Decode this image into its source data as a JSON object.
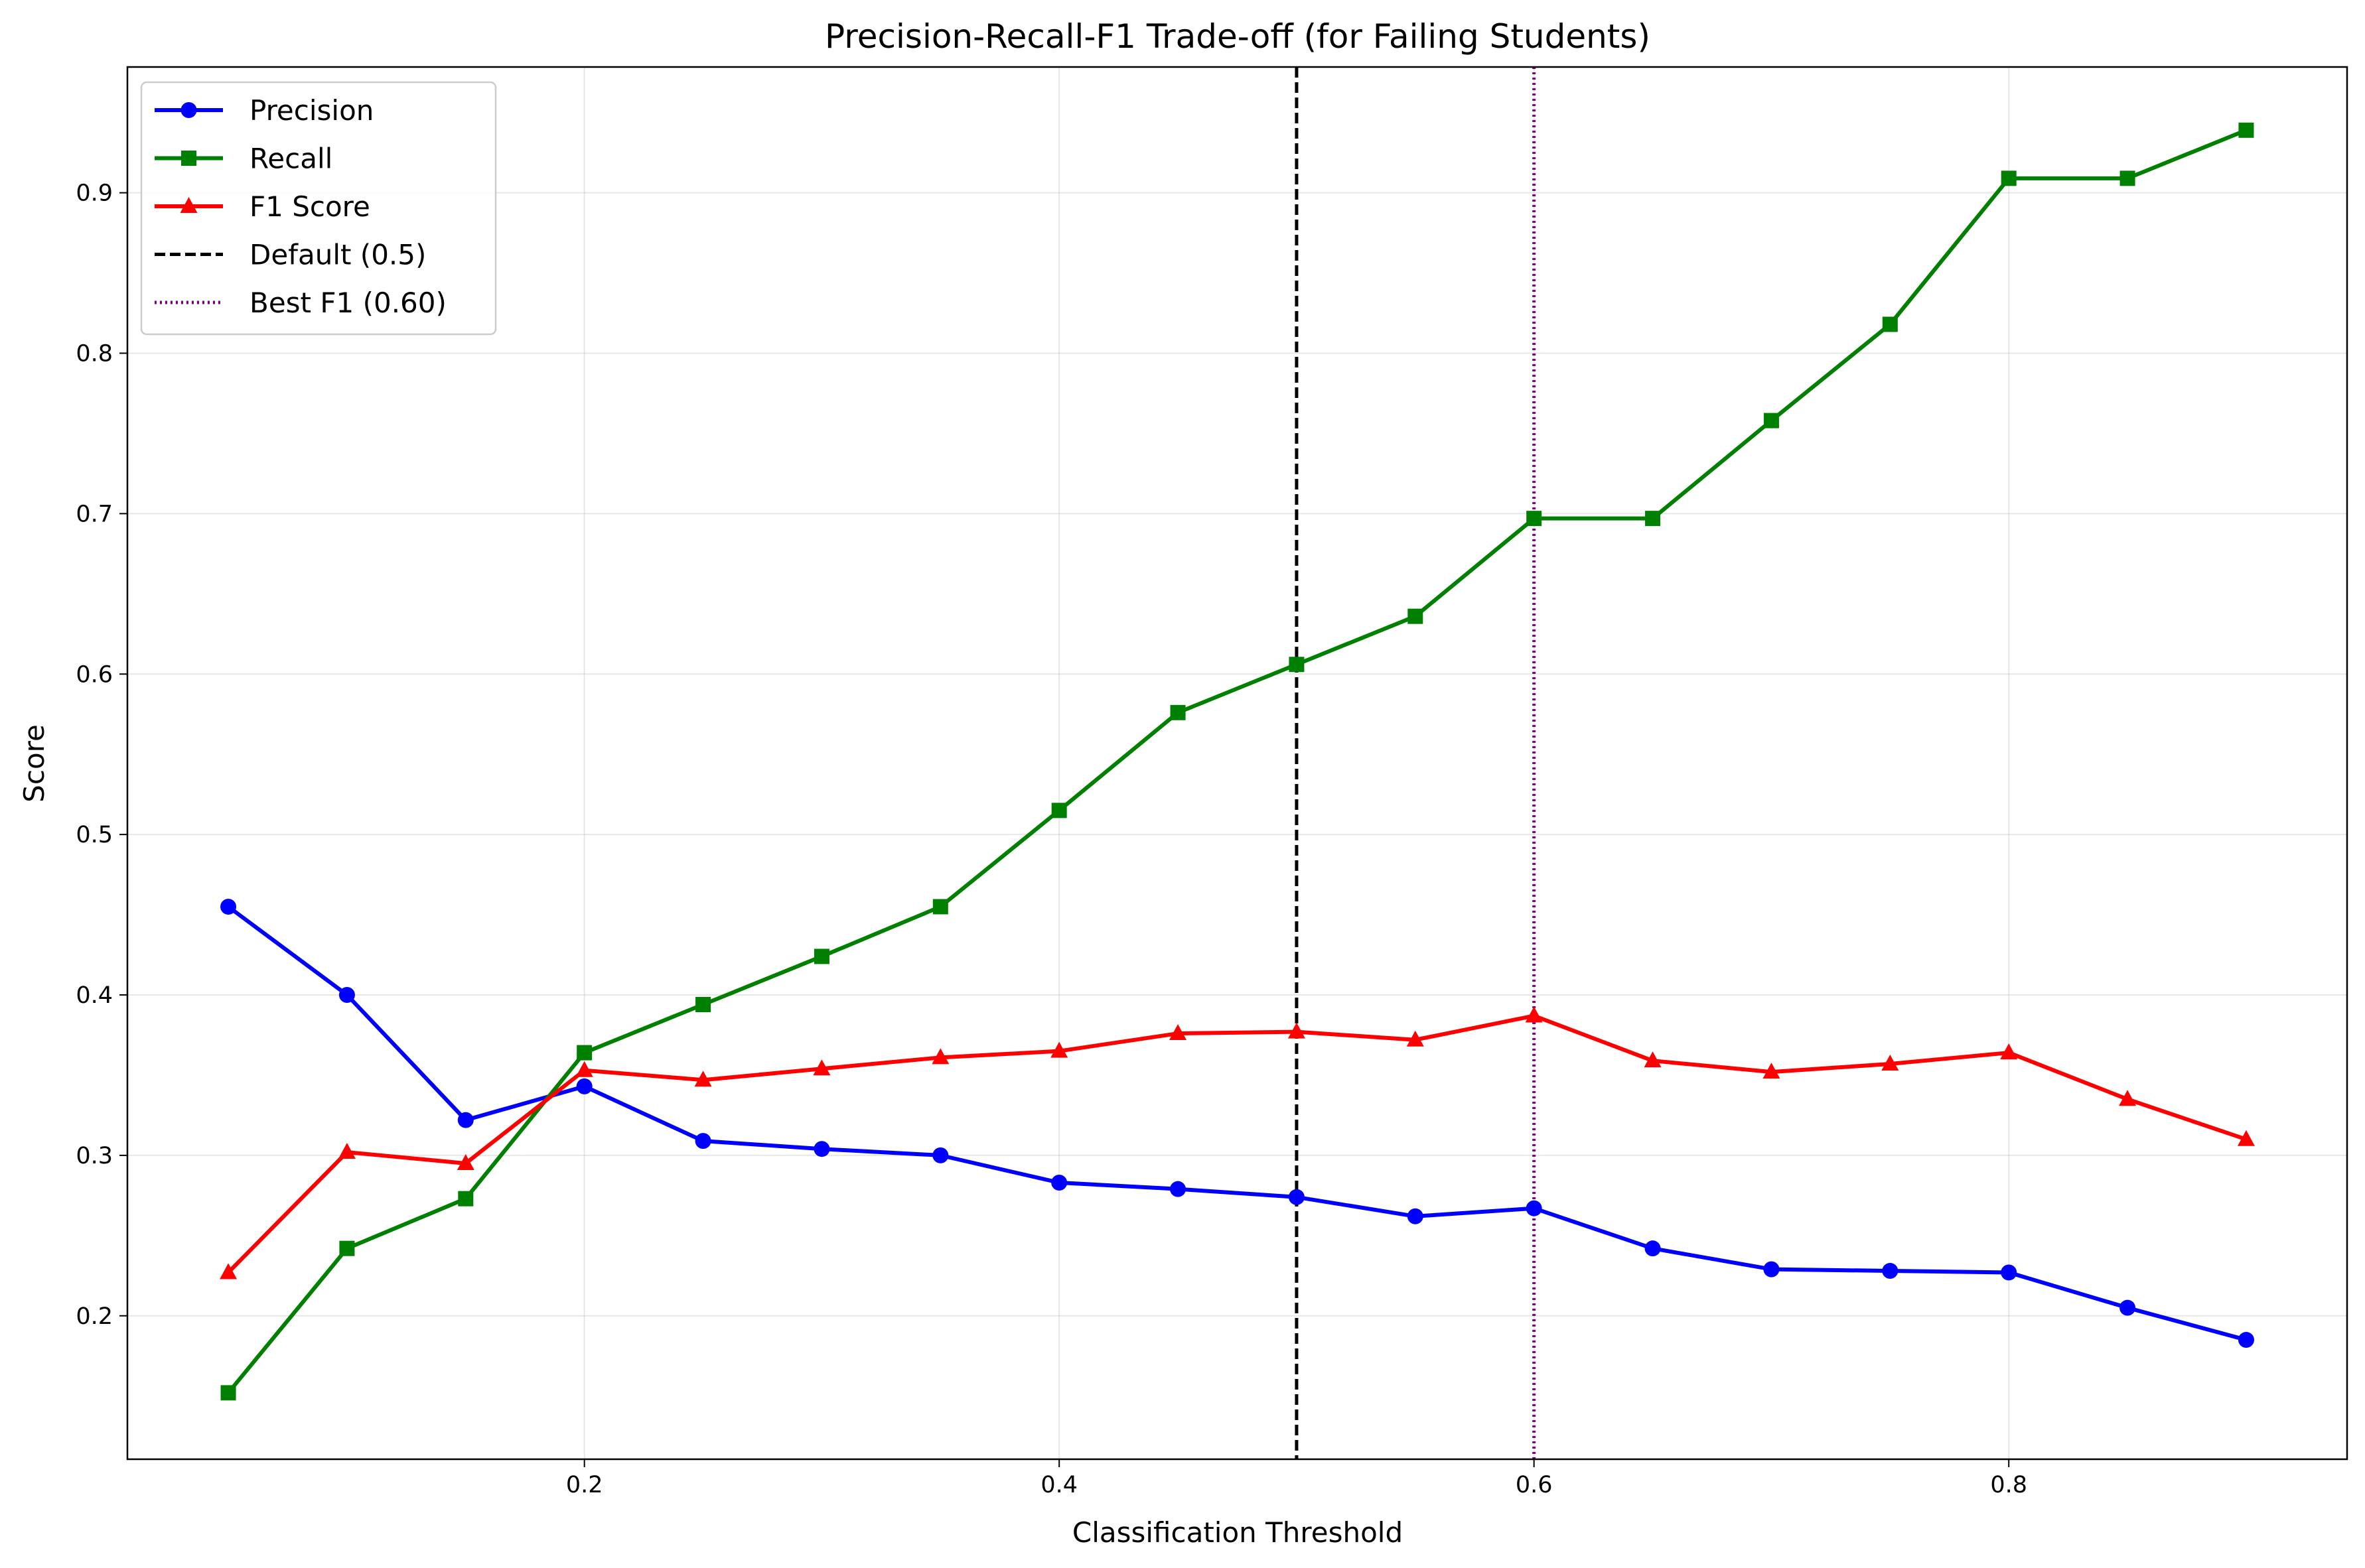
{
  "chart_data": {
    "type": "line",
    "title": "Precision-Recall-F1 Trade-off (for Failing Students)",
    "xlabel": "Classification Threshold",
    "ylabel": "Score",
    "xlim": [
      0.0075,
      0.9425
    ],
    "ylim": [
      0.1106,
      0.9784
    ],
    "xticks": [
      0.2,
      0.4,
      0.6,
      0.8
    ],
    "xtick_labels": [
      "0.2",
      "0.4",
      "0.6",
      "0.8"
    ],
    "yticks": [
      0.2,
      0.3,
      0.4,
      0.5,
      0.6,
      0.7,
      0.8,
      0.9
    ],
    "ytick_labels": [
      "0.2",
      "0.3",
      "0.4",
      "0.5",
      "0.6",
      "0.7",
      "0.8",
      "0.9"
    ],
    "grid": true,
    "legend_position": "top-left",
    "x": [
      0.05,
      0.1,
      0.15,
      0.2,
      0.25,
      0.3,
      0.35,
      0.4,
      0.45,
      0.5,
      0.55,
      0.6,
      0.65,
      0.7,
      0.75,
      0.8,
      0.85,
      0.9
    ],
    "series": [
      {
        "name": "Precision",
        "color": "#0000ff",
        "marker": "circle",
        "values": [
          0.455,
          0.4,
          0.322,
          0.343,
          0.309,
          0.304,
          0.3,
          0.283,
          0.279,
          0.274,
          0.262,
          0.267,
          0.242,
          0.229,
          0.228,
          0.227,
          0.205,
          0.185
        ]
      },
      {
        "name": "Recall",
        "color": "#008000",
        "marker": "square",
        "values": [
          0.152,
          0.242,
          0.273,
          0.364,
          0.394,
          0.424,
          0.455,
          0.515,
          0.576,
          0.606,
          0.636,
          0.697,
          0.697,
          0.758,
          0.818,
          0.909,
          0.909,
          0.939
        ]
      },
      {
        "name": "F1 Score",
        "color": "#ff0000",
        "marker": "triangle",
        "values": [
          0.227,
          0.302,
          0.295,
          0.353,
          0.347,
          0.354,
          0.361,
          0.365,
          0.376,
          0.377,
          0.372,
          0.387,
          0.359,
          0.352,
          0.357,
          0.364,
          0.335,
          0.31
        ]
      }
    ],
    "vlines": [
      {
        "name": "Default (0.5)",
        "x": 0.5,
        "color": "#000000",
        "style": "dashed"
      },
      {
        "name": "Best F1 (0.60)",
        "x": 0.6,
        "color": "#800080",
        "style": "dotted"
      }
    ]
  }
}
